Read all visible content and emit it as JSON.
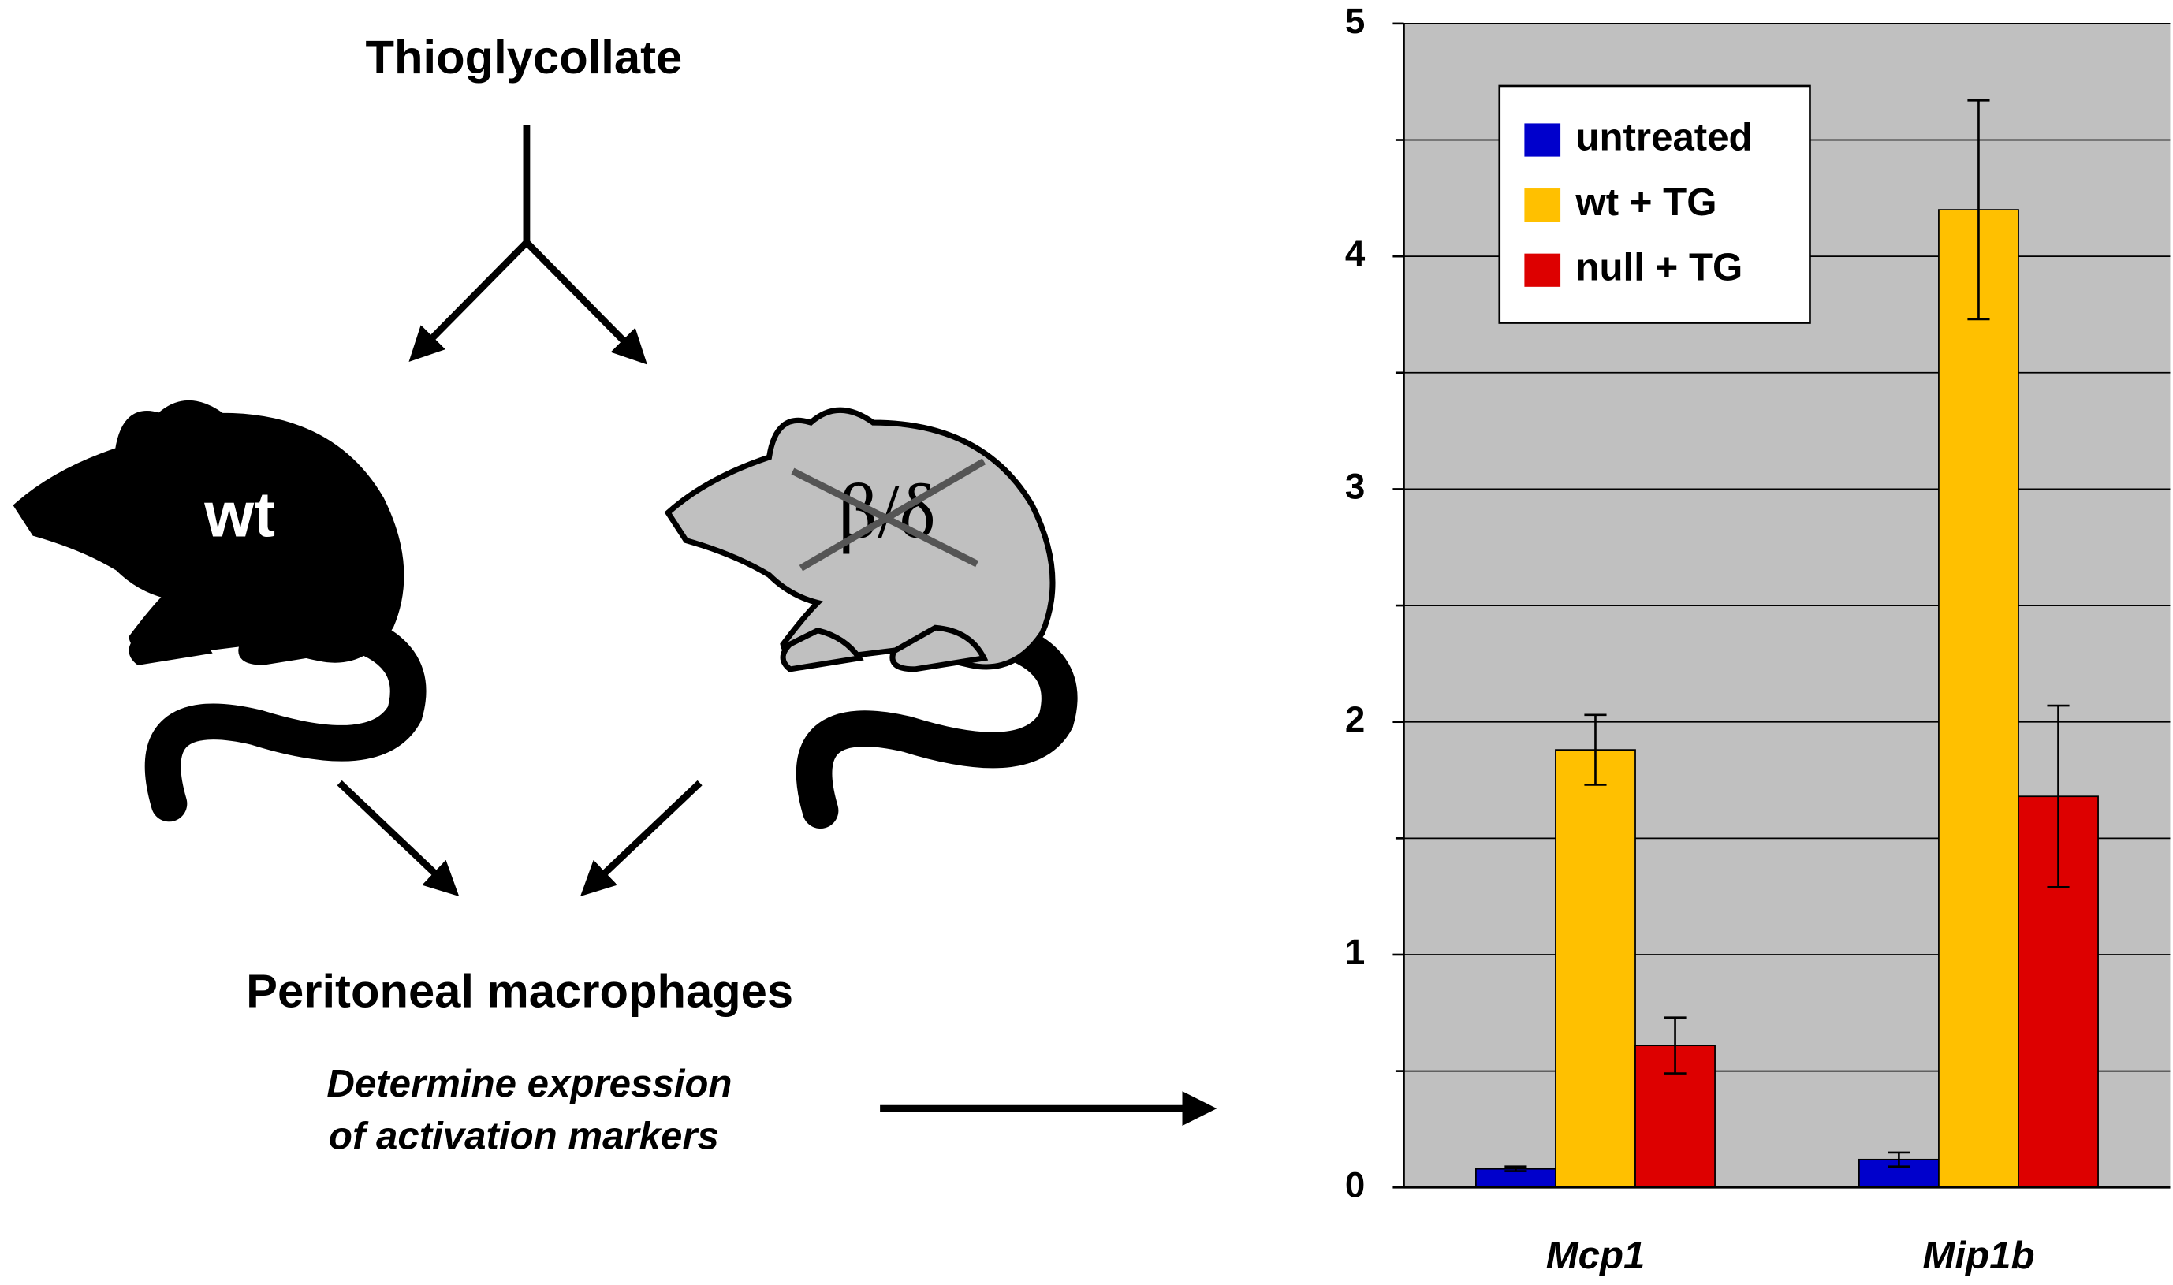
{
  "diagram": {
    "treatment": "Thioglycollate",
    "mouse_wt": "wt",
    "mouse_null": "β/δ",
    "result": "Peritoneal macrophages",
    "step_line1": "Determine expression",
    "step_line2": "of activation markers"
  },
  "chart_data": {
    "type": "bar",
    "categories": [
      "Mcp1",
      "Mip1b"
    ],
    "series": [
      {
        "name": "untreated",
        "color": "#0000cc",
        "values": [
          0.08,
          0.12
        ],
        "errors": [
          0.01,
          0.03
        ]
      },
      {
        "name": "wt + TG",
        "color": "#ffc000",
        "values": [
          1.88,
          4.2
        ],
        "errors": [
          0.15,
          0.47
        ]
      },
      {
        "name": "null + TG",
        "color": "#dd0000",
        "values": [
          0.61,
          1.68
        ],
        "errors": [
          0.12,
          0.39
        ]
      }
    ],
    "ylim": [
      0,
      5
    ],
    "yticks": [
      0,
      1,
      2,
      3,
      4,
      5
    ],
    "minor_yticks": [
      0.5,
      1.5,
      2.5,
      3.5,
      4.5
    ],
    "grid": true,
    "legend": "upper left"
  }
}
